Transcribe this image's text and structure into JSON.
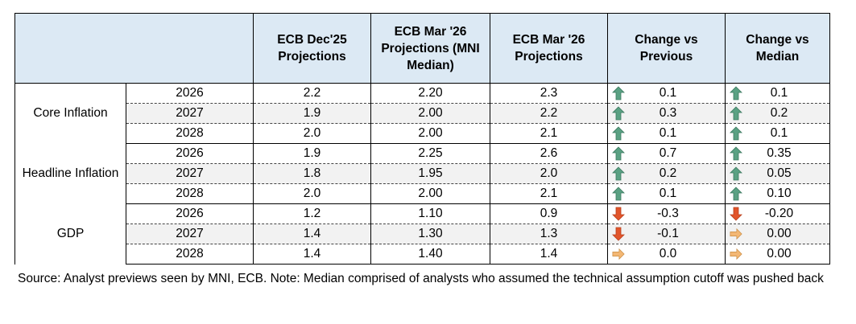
{
  "headers": [
    "",
    "",
    "ECB Dec'25 Projections",
    "ECB Mar '26 Projections (MNI Median)",
    "ECB Mar '26 Projections",
    "Change vs Previous",
    "Change vs Median"
  ],
  "colors": {
    "header_bg": "#dce9f4",
    "up": "#5aa183",
    "down": "#e2552b",
    "flat": "#f3b774"
  },
  "groups": [
    {
      "label": "Core Inflation",
      "rows": [
        {
          "year": "2026",
          "dec": "2.2",
          "median": "2.20",
          "mar": "2.3",
          "chg_prev": "0.1",
          "chg_prev_icon": "up-arrow-icon",
          "chg_med": "0.1",
          "chg_med_icon": "up-arrow-icon"
        },
        {
          "year": "2027",
          "dec": "1.9",
          "median": "2.00",
          "mar": "2.2",
          "chg_prev": "0.3",
          "chg_prev_icon": "up-arrow-icon",
          "chg_med": "0.2",
          "chg_med_icon": "up-arrow-icon"
        },
        {
          "year": "2028",
          "dec": "2.0",
          "median": "2.00",
          "mar": "2.1",
          "chg_prev": "0.1",
          "chg_prev_icon": "up-arrow-icon",
          "chg_med": "0.1",
          "chg_med_icon": "up-arrow-icon"
        }
      ]
    },
    {
      "label": "Headline Inflation",
      "rows": [
        {
          "year": "2026",
          "dec": "1.9",
          "median": "2.25",
          "mar": "2.6",
          "chg_prev": "0.7",
          "chg_prev_icon": "up-arrow-icon",
          "chg_med": "0.35",
          "chg_med_icon": "up-arrow-icon"
        },
        {
          "year": "2027",
          "dec": "1.8",
          "median": "1.95",
          "mar": "2.0",
          "chg_prev": "0.2",
          "chg_prev_icon": "up-arrow-icon",
          "chg_med": "0.05",
          "chg_med_icon": "up-arrow-icon"
        },
        {
          "year": "2028",
          "dec": "2.0",
          "median": "2.00",
          "mar": "2.1",
          "chg_prev": "0.1",
          "chg_prev_icon": "up-arrow-icon",
          "chg_med": "0.10",
          "chg_med_icon": "up-arrow-icon"
        }
      ]
    },
    {
      "label": "GDP",
      "rows": [
        {
          "year": "2026",
          "dec": "1.2",
          "median": "1.10",
          "mar": "0.9",
          "chg_prev": "-0.3",
          "chg_prev_icon": "down-arrow-icon",
          "chg_med": "-0.20",
          "chg_med_icon": "down-arrow-icon"
        },
        {
          "year": "2027",
          "dec": "1.4",
          "median": "1.30",
          "mar": "1.3",
          "chg_prev": "-0.1",
          "chg_prev_icon": "down-arrow-icon",
          "chg_med": "0.00",
          "chg_med_icon": "right-arrow-icon"
        },
        {
          "year": "2028",
          "dec": "1.4",
          "median": "1.40",
          "mar": "1.4",
          "chg_prev": "0.0",
          "chg_prev_icon": "right-arrow-icon",
          "chg_med": "0.00",
          "chg_med_icon": "right-arrow-icon"
        }
      ]
    }
  ],
  "source_note": "Source: Analyst previews seen by MNI, ECB. Note: Median comprised of analysts who assumed the technical assumption cutoff was pushed back"
}
